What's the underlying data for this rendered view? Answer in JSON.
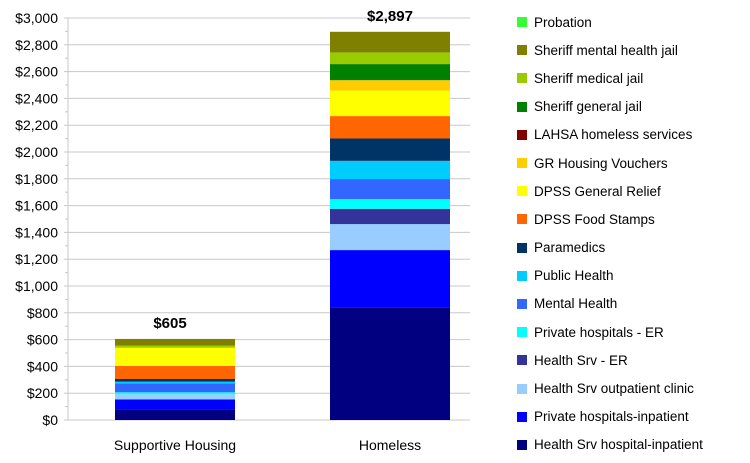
{
  "chart_data": {
    "type": "bar",
    "stacked": true,
    "categories": [
      "Supportive Housing",
      "Homeless"
    ],
    "totals": [
      "$605",
      "$2,897"
    ],
    "ylim": [
      0,
      3000
    ],
    "yticks": [
      "$0",
      "$200",
      "$400",
      "$600",
      "$800",
      "$1,000",
      "$1,200",
      "$1,400",
      "$1,600",
      "$1,800",
      "$2,000",
      "$2,200",
      "$2,400",
      "$2,600",
      "$2,800",
      "$3,000"
    ],
    "grid": true,
    "legend": "right",
    "series": [
      {
        "name": "Health Srv hospital-inpatient",
        "color": "#000080",
        "values": [
          75,
          841
        ]
      },
      {
        "name": "Private hospitals-inpatient",
        "color": "#0000ff",
        "values": [
          79,
          427
        ]
      },
      {
        "name": "Health Srv outpatient clinic",
        "color": "#99ccff",
        "values": [
          38,
          194
        ]
      },
      {
        "name": "Health Srv - ER",
        "color": "#333399",
        "values": [
          0,
          114
        ]
      },
      {
        "name": "Private hospitals - ER",
        "color": "#00ffff",
        "values": [
          15,
          73
        ]
      },
      {
        "name": "Mental Health",
        "color": "#3366ff",
        "values": [
          67,
          149
        ]
      },
      {
        "name": "Public Health",
        "color": "#00ccff",
        "values": [
          12,
          136
        ]
      },
      {
        "name": "Paramedics",
        "color": "#003366",
        "values": [
          20,
          167
        ]
      },
      {
        "name": "DPSS Food Stamps",
        "color": "#ff6600",
        "values": [
          97,
          167
        ]
      },
      {
        "name": "DPSS General Relief",
        "color": "#ffff00",
        "values": [
          136,
          191
        ]
      },
      {
        "name": "GR Housing Vouchers",
        "color": "#ffcc00",
        "values": [
          0,
          77
        ]
      },
      {
        "name": "LAHSA homeless services",
        "color": "#800000",
        "values": [
          0,
          0
        ]
      },
      {
        "name": "Sheriff general jail",
        "color": "#008000",
        "values": [
          0,
          120
        ]
      },
      {
        "name": "Sheriff medical jail",
        "color": "#99cc00",
        "values": [
          16,
          87
        ]
      },
      {
        "name": "Sheriff mental health jail",
        "color": "#808000",
        "values": [
          50,
          154
        ]
      },
      {
        "name": "Probation",
        "color": "#33ff33",
        "values": [
          0,
          0
        ]
      }
    ]
  }
}
